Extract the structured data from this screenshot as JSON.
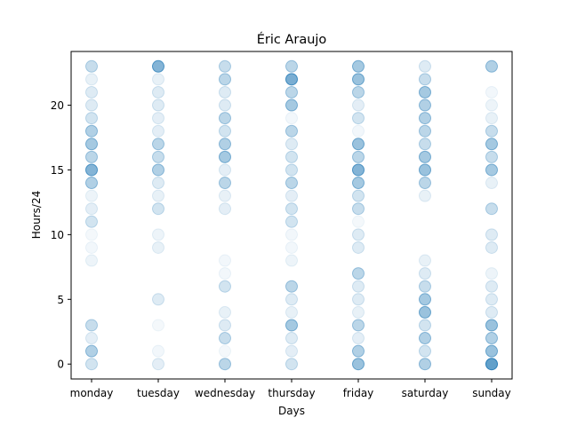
{
  "chart_data": {
    "type": "scatter",
    "title": "Éric Araujo",
    "xlabel": "Days",
    "ylabel": "Hours/24",
    "categories": [
      "monday",
      "tuesday",
      "wednesday",
      "thursday",
      "friday",
      "saturday",
      "sunday"
    ],
    "y_ticks": [
      0,
      5,
      10,
      15,
      20
    ],
    "ylim": [
      -1.15,
      24.15
    ],
    "grid": false,
    "marker_color": "#1f77b4",
    "points": [
      {
        "day": "monday",
        "hour": 0,
        "alpha": 0.2
      },
      {
        "day": "monday",
        "hour": 1,
        "alpha": 0.35
      },
      {
        "day": "monday",
        "hour": 2,
        "alpha": 0.12
      },
      {
        "day": "monday",
        "hour": 3,
        "alpha": 0.25
      },
      {
        "day": "monday",
        "hour": 8,
        "alpha": 0.08
      },
      {
        "day": "monday",
        "hour": 9,
        "alpha": 0.06
      },
      {
        "day": "monday",
        "hour": 10,
        "alpha": 0.05
      },
      {
        "day": "monday",
        "hour": 11,
        "alpha": 0.2
      },
      {
        "day": "monday",
        "hour": 12,
        "alpha": 0.12
      },
      {
        "day": "monday",
        "hour": 13,
        "alpha": 0.08
      },
      {
        "day": "monday",
        "hour": 14,
        "alpha": 0.35
      },
      {
        "day": "monday",
        "hour": 15,
        "alpha": 0.55
      },
      {
        "day": "monday",
        "hour": 16,
        "alpha": 0.3
      },
      {
        "day": "monday",
        "hour": 17,
        "alpha": 0.4
      },
      {
        "day": "monday",
        "hour": 18,
        "alpha": 0.35
      },
      {
        "day": "monday",
        "hour": 19,
        "alpha": 0.2
      },
      {
        "day": "monday",
        "hour": 20,
        "alpha": 0.15
      },
      {
        "day": "monday",
        "hour": 21,
        "alpha": 0.15
      },
      {
        "day": "monday",
        "hour": 22,
        "alpha": 0.1
      },
      {
        "day": "monday",
        "hour": 23,
        "alpha": 0.25
      },
      {
        "day": "tuesday",
        "hour": 0,
        "alpha": 0.12
      },
      {
        "day": "tuesday",
        "hour": 1,
        "alpha": 0.06
      },
      {
        "day": "tuesday",
        "hour": 3,
        "alpha": 0.05
      },
      {
        "day": "tuesday",
        "hour": 5,
        "alpha": 0.15
      },
      {
        "day": "tuesday",
        "hour": 9,
        "alpha": 0.1
      },
      {
        "day": "tuesday",
        "hour": 10,
        "alpha": 0.08
      },
      {
        "day": "tuesday",
        "hour": 12,
        "alpha": 0.2
      },
      {
        "day": "tuesday",
        "hour": 13,
        "alpha": 0.1
      },
      {
        "day": "tuesday",
        "hour": 14,
        "alpha": 0.15
      },
      {
        "day": "tuesday",
        "hour": 15,
        "alpha": 0.35
      },
      {
        "day": "tuesday",
        "hour": 16,
        "alpha": 0.25
      },
      {
        "day": "tuesday",
        "hour": 17,
        "alpha": 0.3
      },
      {
        "day": "tuesday",
        "hour": 18,
        "alpha": 0.12
      },
      {
        "day": "tuesday",
        "hour": 19,
        "alpha": 0.12
      },
      {
        "day": "tuesday",
        "hour": 20,
        "alpha": 0.15
      },
      {
        "day": "tuesday",
        "hour": 21,
        "alpha": 0.15
      },
      {
        "day": "tuesday",
        "hour": 22,
        "alpha": 0.1
      },
      {
        "day": "tuesday",
        "hour": 23,
        "alpha": 0.55
      },
      {
        "day": "wednesday",
        "hour": 0,
        "alpha": 0.3
      },
      {
        "day": "wednesday",
        "hour": 1,
        "alpha": 0.05
      },
      {
        "day": "wednesday",
        "hour": 2,
        "alpha": 0.25
      },
      {
        "day": "wednesday",
        "hour": 3,
        "alpha": 0.15
      },
      {
        "day": "wednesday",
        "hour": 4,
        "alpha": 0.1
      },
      {
        "day": "wednesday",
        "hour": 6,
        "alpha": 0.2
      },
      {
        "day": "wednesday",
        "hour": 7,
        "alpha": 0.06
      },
      {
        "day": "wednesday",
        "hour": 8,
        "alpha": 0.06
      },
      {
        "day": "wednesday",
        "hour": 12,
        "alpha": 0.12
      },
      {
        "day": "wednesday",
        "hour": 13,
        "alpha": 0.1
      },
      {
        "day": "wednesday",
        "hour": 14,
        "alpha": 0.3
      },
      {
        "day": "wednesday",
        "hour": 15,
        "alpha": 0.12
      },
      {
        "day": "wednesday",
        "hour": 16,
        "alpha": 0.4
      },
      {
        "day": "wednesday",
        "hour": 17,
        "alpha": 0.35
      },
      {
        "day": "wednesday",
        "hour": 18,
        "alpha": 0.2
      },
      {
        "day": "wednesday",
        "hour": 19,
        "alpha": 0.3
      },
      {
        "day": "wednesday",
        "hour": 20,
        "alpha": 0.15
      },
      {
        "day": "wednesday",
        "hour": 21,
        "alpha": 0.15
      },
      {
        "day": "wednesday",
        "hour": 22,
        "alpha": 0.3
      },
      {
        "day": "wednesday",
        "hour": 23,
        "alpha": 0.25
      },
      {
        "day": "thursday",
        "hour": 0,
        "alpha": 0.2
      },
      {
        "day": "thursday",
        "hour": 1,
        "alpha": 0.12
      },
      {
        "day": "thursday",
        "hour": 2,
        "alpha": 0.15
      },
      {
        "day": "thursday",
        "hour": 3,
        "alpha": 0.4
      },
      {
        "day": "thursday",
        "hour": 4,
        "alpha": 0.1
      },
      {
        "day": "thursday",
        "hour": 5,
        "alpha": 0.15
      },
      {
        "day": "thursday",
        "hour": 6,
        "alpha": 0.3
      },
      {
        "day": "thursday",
        "hour": 8,
        "alpha": 0.08
      },
      {
        "day": "thursday",
        "hour": 9,
        "alpha": 0.06
      },
      {
        "day": "thursday",
        "hour": 10,
        "alpha": 0.06
      },
      {
        "day": "thursday",
        "hour": 11,
        "alpha": 0.2
      },
      {
        "day": "thursday",
        "hour": 12,
        "alpha": 0.2
      },
      {
        "day": "thursday",
        "hour": 13,
        "alpha": 0.12
      },
      {
        "day": "thursday",
        "hour": 14,
        "alpha": 0.3
      },
      {
        "day": "thursday",
        "hour": 15,
        "alpha": 0.2
      },
      {
        "day": "thursday",
        "hour": 16,
        "alpha": 0.2
      },
      {
        "day": "thursday",
        "hour": 17,
        "alpha": 0.15
      },
      {
        "day": "thursday",
        "hour": 18,
        "alpha": 0.3
      },
      {
        "day": "thursday",
        "hour": 19,
        "alpha": 0.06
      },
      {
        "day": "thursday",
        "hour": 20,
        "alpha": 0.4
      },
      {
        "day": "thursday",
        "hour": 21,
        "alpha": 0.3
      },
      {
        "day": "thursday",
        "hour": 22,
        "alpha": 0.6
      },
      {
        "day": "thursday",
        "hour": 23,
        "alpha": 0.3
      },
      {
        "day": "friday",
        "hour": 0,
        "alpha": 0.45
      },
      {
        "day": "friday",
        "hour": 1,
        "alpha": 0.35
      },
      {
        "day": "friday",
        "hour": 2,
        "alpha": 0.12
      },
      {
        "day": "friday",
        "hour": 3,
        "alpha": 0.3
      },
      {
        "day": "friday",
        "hour": 4,
        "alpha": 0.1
      },
      {
        "day": "friday",
        "hour": 5,
        "alpha": 0.15
      },
      {
        "day": "friday",
        "hour": 6,
        "alpha": 0.15
      },
      {
        "day": "friday",
        "hour": 7,
        "alpha": 0.3
      },
      {
        "day": "friday",
        "hour": 9,
        "alpha": 0.15
      },
      {
        "day": "friday",
        "hour": 10,
        "alpha": 0.15
      },
      {
        "day": "friday",
        "hour": 11,
        "alpha": 0.05
      },
      {
        "day": "friday",
        "hour": 12,
        "alpha": 0.25
      },
      {
        "day": "friday",
        "hour": 13,
        "alpha": 0.2
      },
      {
        "day": "friday",
        "hour": 14,
        "alpha": 0.4
      },
      {
        "day": "friday",
        "hour": 15,
        "alpha": 0.55
      },
      {
        "day": "friday",
        "hour": 16,
        "alpha": 0.3
      },
      {
        "day": "friday",
        "hour": 17,
        "alpha": 0.45
      },
      {
        "day": "friday",
        "hour": 18,
        "alpha": 0.06
      },
      {
        "day": "friday",
        "hour": 19,
        "alpha": 0.2
      },
      {
        "day": "friday",
        "hour": 20,
        "alpha": 0.12
      },
      {
        "day": "friday",
        "hour": 21,
        "alpha": 0.3
      },
      {
        "day": "friday",
        "hour": 22,
        "alpha": 0.45
      },
      {
        "day": "friday",
        "hour": 23,
        "alpha": 0.4
      },
      {
        "day": "saturday",
        "hour": 0,
        "alpha": 0.35
      },
      {
        "day": "saturday",
        "hour": 1,
        "alpha": 0.2
      },
      {
        "day": "saturday",
        "hour": 2,
        "alpha": 0.35
      },
      {
        "day": "saturday",
        "hour": 3,
        "alpha": 0.2
      },
      {
        "day": "saturday",
        "hour": 4,
        "alpha": 0.45
      },
      {
        "day": "saturday",
        "hour": 5,
        "alpha": 0.4
      },
      {
        "day": "saturday",
        "hour": 6,
        "alpha": 0.25
      },
      {
        "day": "saturday",
        "hour": 7,
        "alpha": 0.15
      },
      {
        "day": "saturday",
        "hour": 8,
        "alpha": 0.1
      },
      {
        "day": "saturday",
        "hour": 13,
        "alpha": 0.1
      },
      {
        "day": "saturday",
        "hour": 14,
        "alpha": 0.3
      },
      {
        "day": "saturday",
        "hour": 15,
        "alpha": 0.45
      },
      {
        "day": "saturday",
        "hour": 16,
        "alpha": 0.4
      },
      {
        "day": "saturday",
        "hour": 17,
        "alpha": 0.25
      },
      {
        "day": "saturday",
        "hour": 18,
        "alpha": 0.3
      },
      {
        "day": "saturday",
        "hour": 19,
        "alpha": 0.35
      },
      {
        "day": "saturday",
        "hour": 20,
        "alpha": 0.35
      },
      {
        "day": "saturday",
        "hour": 21,
        "alpha": 0.4
      },
      {
        "day": "saturday",
        "hour": 22,
        "alpha": 0.25
      },
      {
        "day": "saturday",
        "hour": 23,
        "alpha": 0.15
      },
      {
        "day": "sunday",
        "hour": 0,
        "alpha": 0.7
      },
      {
        "day": "sunday",
        "hour": 1,
        "alpha": 0.45
      },
      {
        "day": "sunday",
        "hour": 2,
        "alpha": 0.35
      },
      {
        "day": "sunday",
        "hour": 3,
        "alpha": 0.45
      },
      {
        "day": "sunday",
        "hour": 4,
        "alpha": 0.15
      },
      {
        "day": "sunday",
        "hour": 5,
        "alpha": 0.15
      },
      {
        "day": "sunday",
        "hour": 6,
        "alpha": 0.15
      },
      {
        "day": "sunday",
        "hour": 7,
        "alpha": 0.08
      },
      {
        "day": "sunday",
        "hour": 9,
        "alpha": 0.15
      },
      {
        "day": "sunday",
        "hour": 10,
        "alpha": 0.15
      },
      {
        "day": "sunday",
        "hour": 12,
        "alpha": 0.25
      },
      {
        "day": "sunday",
        "hour": 14,
        "alpha": 0.1
      },
      {
        "day": "sunday",
        "hour": 15,
        "alpha": 0.4
      },
      {
        "day": "sunday",
        "hour": 16,
        "alpha": 0.25
      },
      {
        "day": "sunday",
        "hour": 17,
        "alpha": 0.4
      },
      {
        "day": "sunday",
        "hour": 18,
        "alpha": 0.25
      },
      {
        "day": "sunday",
        "hour": 19,
        "alpha": 0.1
      },
      {
        "day": "sunday",
        "hour": 20,
        "alpha": 0.08
      },
      {
        "day": "sunday",
        "hour": 21,
        "alpha": 0.06
      },
      {
        "day": "sunday",
        "hour": 23,
        "alpha": 0.35
      }
    ]
  }
}
